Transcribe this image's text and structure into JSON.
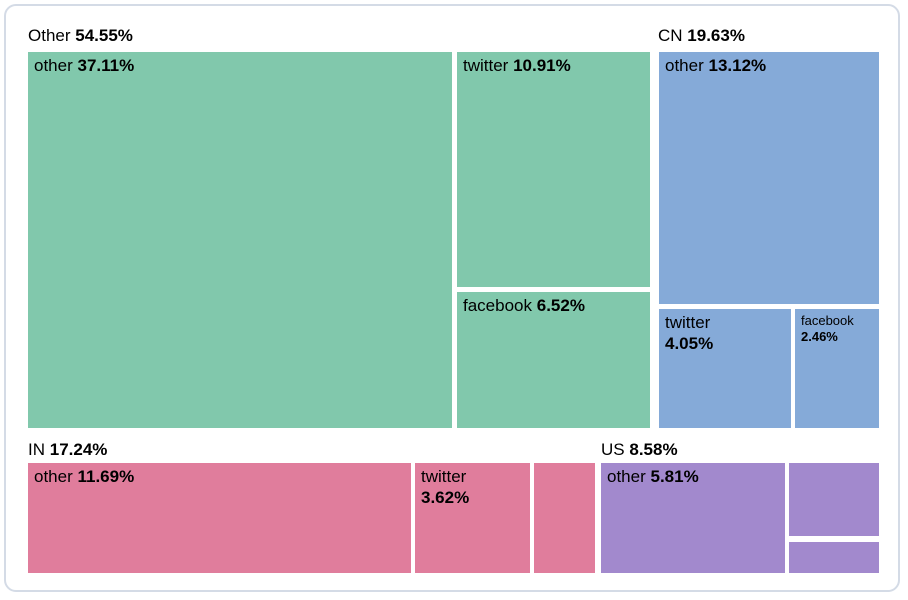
{
  "page": {
    "background_color": "#ffffff",
    "card_border_color": "#d4dbe6"
  },
  "chart_data": {
    "type": "treemap",
    "title": "",
    "value_unit": "%",
    "legend": "none",
    "groups": [
      {
        "label": "Other",
        "display": "54.55%",
        "value": 54.55,
        "color": "#81c8ac",
        "children": [
          {
            "label": "other",
            "display": "37.11%",
            "value": 37.11
          },
          {
            "label": "twitter",
            "display": "10.91%",
            "value": 10.91
          },
          {
            "label": "facebook",
            "display": "6.52%",
            "value": 6.52
          }
        ]
      },
      {
        "label": "CN",
        "display": "19.63%",
        "value": 19.63,
        "color": "#85aad8",
        "children": [
          {
            "label": "other",
            "display": "13.12%",
            "value": 13.12
          },
          {
            "label": "twitter",
            "display": "4.05%",
            "value": 4.05
          },
          {
            "label": "facebook",
            "display": "2.46%",
            "value": 2.46
          }
        ]
      },
      {
        "label": "IN",
        "display": "17.24%",
        "value": 17.24,
        "color": "#e07d9c",
        "children": [
          {
            "label": "other",
            "display": "11.69%",
            "value": 11.69
          },
          {
            "label": "twitter",
            "display": "3.62%",
            "value": 3.62
          },
          {
            "label": "",
            "display": "",
            "value": 1.93,
            "estimated": true
          }
        ]
      },
      {
        "label": "US",
        "display": "8.58%",
        "value": 8.58,
        "color": "#a289cd",
        "children": [
          {
            "label": "other",
            "display": "5.81%",
            "value": 5.81
          },
          {
            "label": "",
            "display": "",
            "value": 1.94,
            "estimated": true
          },
          {
            "label": "",
            "display": "",
            "value": 0.83,
            "estimated": true
          }
        ]
      }
    ]
  }
}
